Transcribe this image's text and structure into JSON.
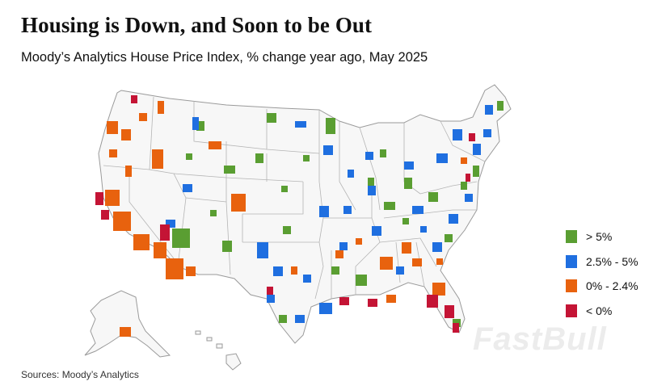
{
  "title": "Housing is Down, and Soon to be Out",
  "subtitle": "Moody’s Analytics House Price Index, % change year ago, May 2025",
  "source": "Sources: Moody’s Analytics",
  "watermark": "FastBull",
  "legend": [
    {
      "label": "> 5%",
      "color": "#5a9e32"
    },
    {
      "label": "2.5% - 5%",
      "color": "#1f6fe0"
    },
    {
      "label": "0% - 2.4%",
      "color": "#e8620e"
    },
    {
      "label": "< 0%",
      "color": "#c41435"
    }
  ],
  "map_colors": {
    "land": "#f7f7f7",
    "border": "#9a9a9a"
  }
}
